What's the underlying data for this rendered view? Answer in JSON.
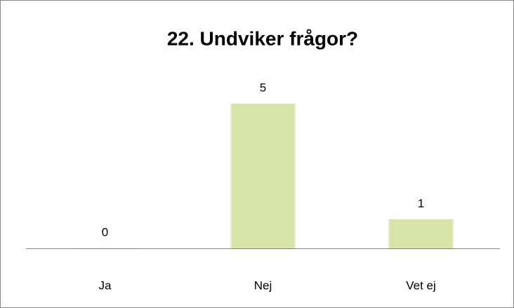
{
  "chart_data": {
    "type": "bar",
    "title": "22. Undviker frågor?",
    "categories": [
      "Ja",
      "Nej",
      "Vet ej"
    ],
    "values": [
      0,
      5,
      1
    ],
    "color": "#d7e4a8"
  }
}
